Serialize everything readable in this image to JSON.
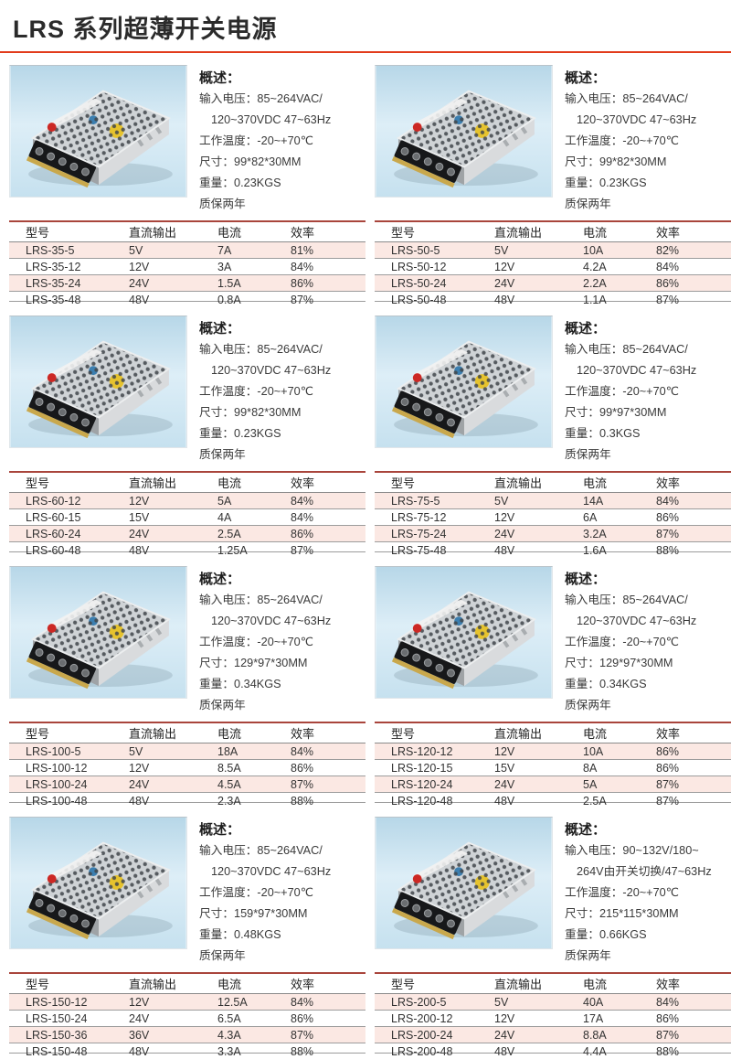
{
  "page": {
    "title": "LRS 系列超薄开关电源"
  },
  "colors": {
    "accent_red": "#e23b1b",
    "table_top_line": "#a9453c",
    "row_pink": "#fbe8e3",
    "photo_background": "#cfe5f2"
  },
  "table_headers": [
    "型号",
    "直流输出",
    "电流",
    "效率"
  ],
  "products": [
    {
      "overview_title": "概述：",
      "specs": [
        "输入电压：85~264VAC/",
        "120~370VDC 47~63Hz",
        "工作温度：-20~+70℃",
        "尺寸：99*82*30MM",
        "重量：0.23KGS",
        "质保两年"
      ],
      "rows": [
        [
          "LRS-35-5",
          "5V",
          "7A",
          "81%"
        ],
        [
          "LRS-35-12",
          "12V",
          "3A",
          "84%"
        ],
        [
          "LRS-35-24",
          "24V",
          "1.5A",
          "86%"
        ],
        [
          "LRS-35-48",
          "48V",
          "0.8A",
          "87%"
        ]
      ]
    },
    {
      "overview_title": "概述：",
      "specs": [
        "输入电压：85~264VAC/",
        "120~370VDC 47~63Hz",
        "工作温度：-20~+70℃",
        "尺寸：99*82*30MM",
        "重量：0.23KGS",
        "质保两年"
      ],
      "rows": [
        [
          "LRS-50-5",
          "5V",
          "10A",
          "82%"
        ],
        [
          "LRS-50-12",
          "12V",
          "4.2A",
          "84%"
        ],
        [
          "LRS-50-24",
          "24V",
          "2.2A",
          "86%"
        ],
        [
          "LRS-50-48",
          "48V",
          "1.1A",
          "87%"
        ]
      ]
    },
    {
      "overview_title": "概述：",
      "specs": [
        "输入电压：85~264VAC/",
        "120~370VDC 47~63Hz",
        "工作温度：-20~+70℃",
        "尺寸：99*82*30MM",
        "重量：0.23KGS",
        "质保两年"
      ],
      "rows": [
        [
          "LRS-60-12",
          "12V",
          "5A",
          "84%"
        ],
        [
          "LRS-60-15",
          "15V",
          "4A",
          "84%"
        ],
        [
          "LRS-60-24",
          "24V",
          "2.5A",
          "86%"
        ],
        [
          "LRS-60-48",
          "48V",
          "1.25A",
          "87%"
        ]
      ]
    },
    {
      "overview_title": "概述：",
      "specs": [
        "输入电压：85~264VAC/",
        "120~370VDC 47~63Hz",
        "工作温度：-20~+70℃",
        "尺寸：99*97*30MM",
        "重量：0.3KGS",
        "质保两年"
      ],
      "rows": [
        [
          "LRS-75-5",
          "5V",
          "14A",
          "84%"
        ],
        [
          "LRS-75-12",
          "12V",
          "6A",
          "86%"
        ],
        [
          "LRS-75-24",
          "24V",
          "3.2A",
          "87%"
        ],
        [
          "LRS-75-48",
          "48V",
          "1.6A",
          "88%"
        ]
      ]
    },
    {
      "overview_title": "概述：",
      "specs": [
        "输入电压：85~264VAC/",
        "120~370VDC 47~63Hz",
        "工作温度：-20~+70℃",
        "尺寸：129*97*30MM",
        "重量：0.34KGS",
        "质保两年"
      ],
      "rows": [
        [
          "LRS-100-5",
          "5V",
          "18A",
          "84%"
        ],
        [
          "LRS-100-12",
          "12V",
          "8.5A",
          "86%"
        ],
        [
          "LRS-100-24",
          "24V",
          "4.5A",
          "87%"
        ],
        [
          "LRS-100-48",
          "48V",
          "2.3A",
          "88%"
        ]
      ]
    },
    {
      "overview_title": "概述：",
      "specs": [
        "输入电压：85~264VAC/",
        "120~370VDC 47~63Hz",
        "工作温度：-20~+70℃",
        "尺寸：129*97*30MM",
        "重量：0.34KGS",
        "质保两年"
      ],
      "rows": [
        [
          "LRS-120-12",
          "12V",
          "10A",
          "86%"
        ],
        [
          "LRS-120-15",
          "15V",
          "8A",
          "86%"
        ],
        [
          "LRS-120-24",
          "24V",
          "5A",
          "87%"
        ],
        [
          "LRS-120-48",
          "48V",
          "2.5A",
          "87%"
        ]
      ]
    },
    {
      "overview_title": "概述：",
      "specs": [
        "输入电压：85~264VAC/",
        "120~370VDC 47~63Hz",
        "工作温度：-20~+70℃",
        "尺寸：159*97*30MM",
        "重量：0.48KGS",
        "质保两年"
      ],
      "rows": [
        [
          "LRS-150-12",
          "12V",
          "12.5A",
          "84%"
        ],
        [
          "LRS-150-24",
          "24V",
          "6.5A",
          "86%"
        ],
        [
          "LRS-150-36",
          "36V",
          "4.3A",
          "87%"
        ],
        [
          "LRS-150-48",
          "48V",
          "3.3A",
          "88%"
        ]
      ]
    },
    {
      "overview_title": "概述：",
      "specs": [
        "输入电压：90~132V/180~",
        "264V由开关切换/47~63Hz",
        "工作温度：-20~+70℃",
        "尺寸：215*115*30MM",
        "重量：0.66KGS",
        "质保两年"
      ],
      "rows": [
        [
          "LRS-200-5",
          "5V",
          "40A",
          "84%"
        ],
        [
          "LRS-200-12",
          "12V",
          "17A",
          "86%"
        ],
        [
          "LRS-200-24",
          "24V",
          "8.8A",
          "87%"
        ],
        [
          "LRS-200-48",
          "48V",
          "4.4A",
          "88%"
        ]
      ]
    }
  ]
}
